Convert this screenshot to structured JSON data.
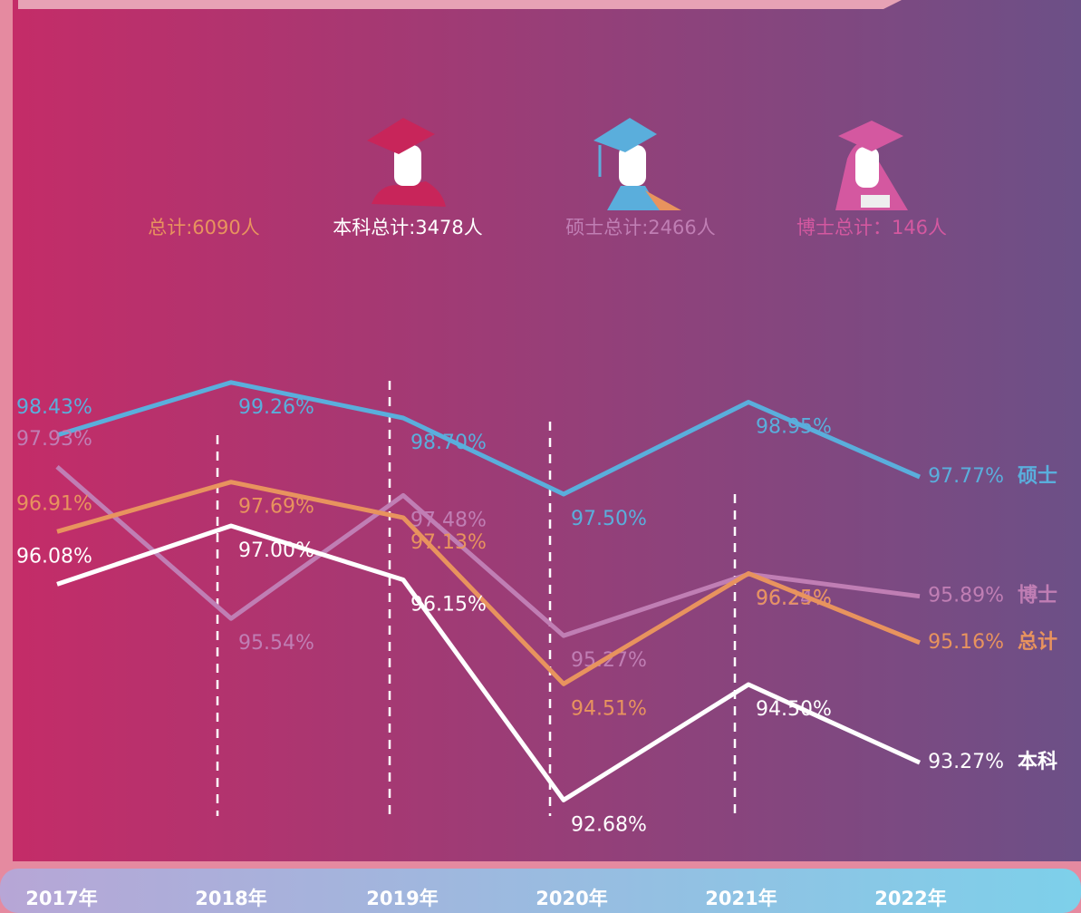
{
  "chart_data": {
    "type": "line",
    "totals": [
      "总计:6090人",
      "本科总计:3478人",
      "硕士总计:2466人",
      "博士总计：146人"
    ],
    "categories": [
      "2017年",
      "2018年",
      "2019年",
      "2020年",
      "2021年",
      "2022年"
    ],
    "ylim": [
      92,
      100
    ],
    "series": [
      {
        "name": "硕士",
        "color": "#5aaedc",
        "values": [
          98.43,
          99.26,
          98.7,
          97.5,
          98.95,
          97.77
        ],
        "value_labels": [
          "98.43%",
          "99.26%",
          "98.70%",
          "97.50%",
          "98.95%",
          "97.77%"
        ]
      },
      {
        "name": "博士",
        "color": "#c07eb4",
        "values": [
          97.93,
          95.54,
          97.48,
          95.27,
          96.24,
          95.89
        ],
        "value_labels": [
          "97.93%",
          "95.54%",
          "97.48%",
          "95.27%",
          "96.24%",
          "95.89%"
        ]
      },
      {
        "name": "总计",
        "color": "#e8935e",
        "values": [
          96.91,
          97.69,
          97.13,
          94.51,
          96.25,
          95.16
        ],
        "value_labels": [
          "96.91%",
          "97.69%",
          "97.13%",
          "94.51%",
          "96.25%",
          "95.16%"
        ]
      },
      {
        "name": "本科",
        "color": "#ffffff",
        "values": [
          96.08,
          97.0,
          96.15,
          92.68,
          94.5,
          93.27
        ],
        "value_labels": [
          "96.08%",
          "97.00%",
          "96.15%",
          "92.68%",
          "94.50%",
          "93.27%"
        ]
      }
    ]
  }
}
